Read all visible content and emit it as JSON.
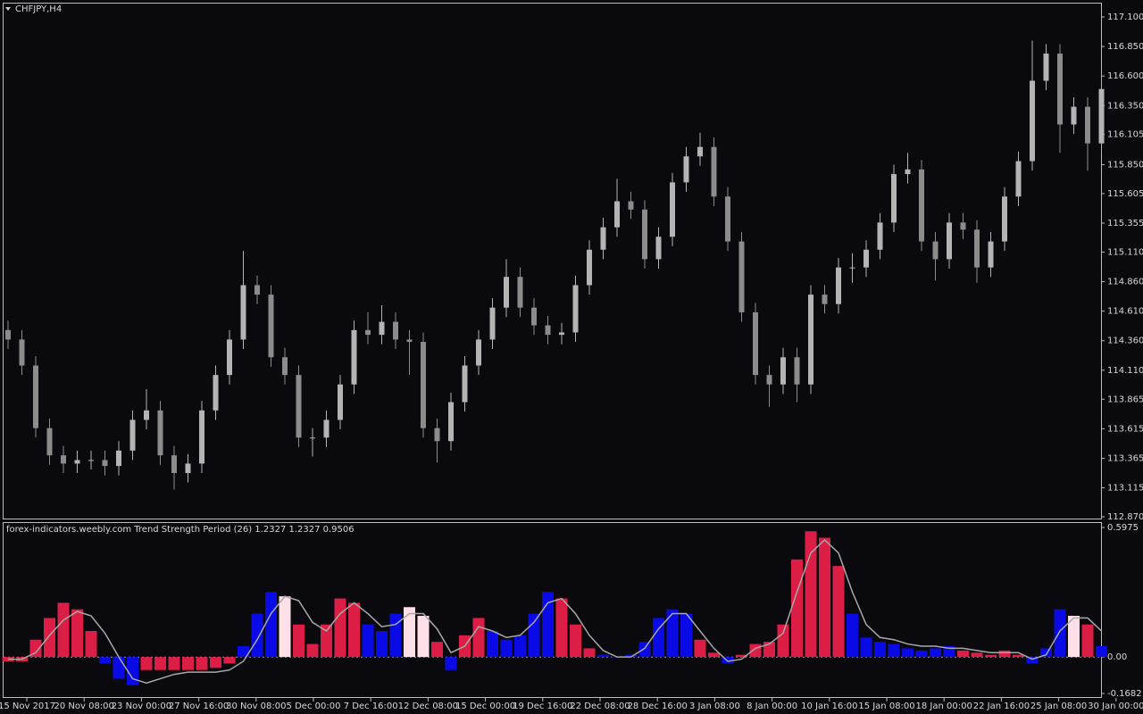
{
  "chart_data": [
    {
      "type": "candlestick",
      "title": "CHFJPY,H4",
      "up_color": "#b4b4b4",
      "down_color": "#8c8c8c",
      "ylim": [
        112.87,
        117.1
      ],
      "yticks": [
        {
          "value": 117.1,
          "label": "117.100"
        },
        {
          "value": 116.85,
          "label": "116.850"
        },
        {
          "value": 116.6,
          "label": "116.600"
        },
        {
          "value": 116.35,
          "label": "116.350"
        },
        {
          "value": 116.105,
          "label": "116.105"
        },
        {
          "value": 115.85,
          "label": "115.850"
        },
        {
          "value": 115.605,
          "label": "115.605"
        },
        {
          "value": 115.355,
          "label": "115.355"
        },
        {
          "value": 115.11,
          "label": "115.110"
        },
        {
          "value": 114.86,
          "label": "114.860"
        },
        {
          "value": 114.61,
          "label": "114.610"
        },
        {
          "value": 114.36,
          "label": "114.360"
        },
        {
          "value": 114.11,
          "label": "114.110"
        },
        {
          "value": 113.865,
          "label": "113.865"
        },
        {
          "value": 113.615,
          "label": "113.615"
        },
        {
          "value": 113.365,
          "label": "113.365"
        },
        {
          "value": 113.115,
          "label": "113.115"
        },
        {
          "value": 112.87,
          "label": "112.870"
        }
      ],
      "ohlc": [
        [
          114.45,
          114.53,
          114.29,
          114.37
        ],
        [
          114.37,
          114.45,
          114.07,
          114.15
        ],
        [
          114.15,
          114.23,
          113.54,
          113.62
        ],
        [
          113.62,
          113.7,
          113.31,
          113.39
        ],
        [
          113.39,
          113.47,
          113.24,
          113.32
        ],
        [
          113.32,
          113.43,
          113.24,
          113.35
        ],
        [
          113.35,
          113.43,
          113.27,
          113.35
        ],
        [
          113.35,
          113.43,
          113.22,
          113.3
        ],
        [
          113.3,
          113.51,
          113.22,
          113.43
        ],
        [
          113.43,
          113.77,
          113.35,
          113.69
        ],
        [
          113.69,
          113.95,
          113.61,
          113.77
        ],
        [
          113.77,
          113.85,
          113.31,
          113.39
        ],
        [
          113.39,
          113.47,
          113.1,
          113.24
        ],
        [
          113.24,
          113.4,
          113.16,
          113.32
        ],
        [
          113.32,
          113.85,
          113.24,
          113.77
        ],
        [
          113.77,
          114.15,
          113.69,
          114.07
        ],
        [
          114.07,
          114.45,
          113.99,
          114.37
        ],
        [
          114.37,
          115.12,
          114.29,
          114.83
        ],
        [
          114.83,
          114.91,
          114.67,
          114.75
        ],
        [
          114.75,
          114.83,
          114.14,
          114.22
        ],
        [
          114.22,
          114.3,
          113.99,
          114.07
        ],
        [
          114.07,
          114.15,
          113.46,
          113.54
        ],
        [
          113.54,
          113.62,
          113.38,
          113.54
        ],
        [
          113.54,
          113.77,
          113.46,
          113.69
        ],
        [
          113.69,
          114.07,
          113.61,
          113.99
        ],
        [
          113.99,
          114.53,
          113.91,
          114.45
        ],
        [
          114.45,
          114.6,
          114.33,
          114.41
        ],
        [
          114.41,
          114.66,
          114.33,
          114.52
        ],
        [
          114.52,
          114.6,
          114.29,
          114.37
        ],
        [
          114.37,
          114.45,
          114.07,
          114.35
        ],
        [
          114.35,
          114.43,
          113.54,
          113.62
        ],
        [
          113.62,
          113.7,
          113.33,
          113.51
        ],
        [
          113.51,
          113.92,
          113.43,
          113.84
        ],
        [
          113.84,
          114.23,
          113.76,
          114.15
        ],
        [
          114.15,
          114.45,
          114.07,
          114.37
        ],
        [
          114.37,
          114.72,
          114.29,
          114.64
        ],
        [
          114.64,
          115.05,
          114.56,
          114.9
        ],
        [
          114.9,
          114.98,
          114.56,
          114.64
        ],
        [
          114.64,
          114.72,
          114.41,
          114.49
        ],
        [
          114.49,
          114.57,
          114.33,
          114.41
        ],
        [
          114.41,
          114.51,
          114.33,
          114.43
        ],
        [
          114.43,
          114.91,
          114.35,
          114.83
        ],
        [
          114.83,
          115.21,
          114.75,
          115.13
        ],
        [
          115.13,
          115.4,
          115.05,
          115.32
        ],
        [
          115.32,
          115.73,
          115.24,
          115.54
        ],
        [
          115.54,
          115.62,
          115.39,
          115.47
        ],
        [
          115.47,
          115.55,
          114.97,
          115.05
        ],
        [
          115.05,
          115.32,
          114.97,
          115.24
        ],
        [
          115.24,
          115.78,
          115.16,
          115.7
        ],
        [
          115.7,
          116.0,
          115.62,
          115.92
        ],
        [
          115.92,
          116.12,
          115.84,
          116.0
        ],
        [
          116.0,
          116.08,
          115.5,
          115.58
        ],
        [
          115.58,
          115.66,
          115.12,
          115.2
        ],
        [
          115.2,
          115.28,
          114.52,
          114.6
        ],
        [
          114.6,
          114.68,
          113.99,
          114.07
        ],
        [
          114.07,
          114.15,
          113.8,
          113.99
        ],
        [
          113.99,
          114.3,
          113.91,
          114.22
        ],
        [
          114.22,
          114.3,
          113.84,
          113.99
        ],
        [
          113.99,
          114.83,
          113.91,
          114.75
        ],
        [
          114.75,
          114.83,
          114.59,
          114.67
        ],
        [
          114.67,
          115.06,
          114.59,
          114.98
        ],
        [
          114.98,
          115.1,
          114.85,
          114.98
        ],
        [
          114.98,
          115.21,
          114.9,
          115.13
        ],
        [
          115.13,
          115.44,
          115.05,
          115.36
        ],
        [
          115.36,
          115.85,
          115.28,
          115.77
        ],
        [
          115.77,
          115.95,
          115.69,
          115.81
        ],
        [
          115.81,
          115.89,
          115.12,
          115.2
        ],
        [
          115.2,
          115.28,
          114.87,
          115.05
        ],
        [
          115.05,
          115.44,
          114.97,
          115.36
        ],
        [
          115.36,
          115.44,
          115.22,
          115.3
        ],
        [
          115.3,
          115.38,
          114.85,
          114.98
        ],
        [
          114.98,
          115.28,
          114.9,
          115.2
        ],
        [
          115.2,
          115.66,
          115.12,
          115.58
        ],
        [
          115.58,
          115.96,
          115.5,
          115.88
        ],
        [
          115.88,
          116.9,
          115.8,
          116.56
        ],
        [
          116.56,
          116.87,
          116.48,
          116.79
        ],
        [
          116.79,
          116.87,
          115.95,
          116.19
        ],
        [
          116.19,
          116.42,
          116.11,
          116.34
        ],
        [
          116.34,
          116.42,
          115.8,
          116.03
        ],
        [
          116.03,
          116.64,
          115.95,
          116.49
        ]
      ]
    },
    {
      "type": "histogram",
      "title": "forex-indicators.weebly.com Trend Strength Period (26) 1.2327 1.2327 0.9506",
      "ylim": [
        -0.1682,
        0.5975
      ],
      "yticks": [
        0.5975,
        {
          "value": 0,
          "label": "0.00"
        },
        -0.1682
      ],
      "histogram": {
        "values": [
          -0.02,
          -0.02,
          0.08,
          0.18,
          0.25,
          0.22,
          0.12,
          -0.03,
          -0.1,
          -0.13,
          -0.06,
          -0.06,
          -0.06,
          -0.06,
          -0.06,
          -0.05,
          -0.03,
          0.05,
          0.2,
          0.3,
          0.28,
          0.15,
          0.06,
          0.15,
          0.27,
          0.25,
          0.15,
          0.12,
          0.2,
          0.23,
          0.19,
          0.07,
          -0.06,
          0.1,
          0.18,
          0.12,
          0.08,
          0.1,
          0.2,
          0.3,
          0.27,
          0.15,
          0.04,
          0.01,
          0,
          0.01,
          0.07,
          0.18,
          0.22,
          0.2,
          0.08,
          0.02,
          -0.03,
          0.01,
          0.06,
          0.07,
          0.15,
          0.45,
          0.58,
          0.55,
          0.42,
          0.2,
          0.09,
          0.07,
          0.06,
          0.04,
          0.03,
          0.04,
          0.05,
          0.03,
          0.02,
          0.01,
          0.03,
          0.01,
          -0.03,
          0.04,
          0.22,
          0.19,
          0.15,
          0.05
        ],
        "colors": [
          "#dc1e46",
          "#dc1e46",
          "#dc1e46",
          "#dc1e46",
          "#dc1e46",
          "#dc1e46",
          "#dc1e46",
          "#0a0ae6",
          "#0a0ae6",
          "#0a0ae6",
          "#dc1e46",
          "#dc1e46",
          "#dc1e46",
          "#dc1e46",
          "#dc1e46",
          "#dc1e46",
          "#dc1e46",
          "#0a0ae6",
          "#0a0ae6",
          "#0a0ae6",
          "#ffe0e8",
          "#dc1e46",
          "#dc1e46",
          "#dc1e46",
          "#dc1e46",
          "#dc1e46",
          "#0a0ae6",
          "#0a0ae6",
          "#0a0ae6",
          "#ffe0e8",
          "#ffe0e8",
          "#dc1e46",
          "#0a0ae6",
          "#dc1e46",
          "#dc1e46",
          "#0a0ae6",
          "#0a0ae6",
          "#0a0ae6",
          "#0a0ae6",
          "#0a0ae6",
          "#dc1e46",
          "#dc1e46",
          "#dc1e46",
          "#0a0ae6",
          "#0a0ae6",
          "#0a0ae6",
          "#0a0ae6",
          "#0a0ae6",
          "#0a0ae6",
          "#0a0ae6",
          "#dc1e46",
          "#dc1e46",
          "#0a0ae6",
          "#dc1e46",
          "#dc1e46",
          "#dc1e46",
          "#dc1e46",
          "#dc1e46",
          "#dc1e46",
          "#dc1e46",
          "#dc1e46",
          "#0a0ae6",
          "#0a0ae6",
          "#0a0ae6",
          "#0a0ae6",
          "#0a0ae6",
          "#0a0ae6",
          "#0a0ae6",
          "#0a0ae6",
          "#dc1e46",
          "#dc1e46",
          "#dc1e46",
          "#dc1e46",
          "#dc1e46",
          "#0a0ae6",
          "#0a0ae6",
          "#0a0ae6",
          "#ffe0e8",
          "#dc1e46",
          "#0a0ae6"
        ]
      },
      "signal": {
        "color": "#a8a8a8",
        "values": [
          -0.01,
          -0.01,
          0.02,
          0.1,
          0.17,
          0.21,
          0.19,
          0.11,
          0,
          -0.1,
          -0.12,
          -0.1,
          -0.08,
          -0.07,
          -0.07,
          -0.07,
          -0.06,
          -0.02,
          0.08,
          0.2,
          0.28,
          0.26,
          0.16,
          0.12,
          0.2,
          0.25,
          0.2,
          0.14,
          0.15,
          0.2,
          0.2,
          0.13,
          0.02,
          0.05,
          0.14,
          0.12,
          0.09,
          0.1,
          0.16,
          0.25,
          0.27,
          0.2,
          0.1,
          0.03,
          0,
          0,
          0.04,
          0.13,
          0.2,
          0.2,
          0.12,
          0.04,
          -0.02,
          -0.01,
          0.04,
          0.06,
          0.11,
          0.3,
          0.48,
          0.54,
          0.48,
          0.3,
          0.15,
          0.09,
          0.08,
          0.06,
          0.05,
          0.05,
          0.04,
          0.04,
          0.03,
          0.02,
          0.02,
          0.02,
          -0.01,
          0.01,
          0.12,
          0.18,
          0.18,
          0.12
        ]
      },
      "x_labels": [
        "15 Nov 2017",
        "20 Nov 08:00",
        "23 Nov 00:00",
        "27 Nov 16:00",
        "30 Nov 08:00",
        "5 Dec 00:00",
        "7 Dec 16:00",
        "12 Dec 08:00",
        "15 Dec 00:00",
        "19 Dec 16:00",
        "22 Dec 08:00",
        "28 Dec 16:00",
        "3 Jan 08:00",
        "8 Jan 00:00",
        "10 Jan 16:00",
        "15 Jan 08:00",
        "18 Jan 00:00",
        "22 Jan 16:00",
        "25 Jan 08:00",
        "30 Jan 00:00"
      ]
    }
  ]
}
